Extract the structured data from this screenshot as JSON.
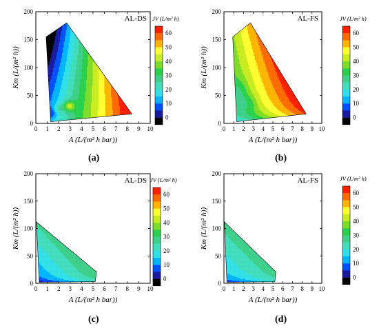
{
  "panel_captions": [
    "(a)",
    "(b)",
    "(c)",
    "(d)"
  ],
  "chart_data": [
    {
      "type": "contour",
      "panel": "a",
      "label": "AL-DS",
      "xlabel": "A (L/(m² h bar))",
      "ylabel": "Km (L/(m² h))",
      "xlim": [
        0,
        10
      ],
      "ylim": [
        0,
        200
      ],
      "xticks": [
        0,
        1,
        2,
        3,
        4,
        5,
        6,
        7,
        8,
        9,
        10
      ],
      "yticks": [
        0,
        50,
        100,
        150,
        200
      ],
      "colorbar_title": "JV (L/m² h)",
      "colorbar_ticks": [
        0,
        10,
        20,
        30,
        40,
        50,
        60
      ],
      "levels": [
        -5,
        0,
        5,
        10,
        15,
        20,
        25,
        30,
        35,
        40,
        45,
        50,
        55,
        60,
        65
      ],
      "colors": [
        "#000000",
        "#1a1aa0",
        "#0050ff",
        "#00b4ff",
        "#30e0e6",
        "#40ddbc",
        "#3cd08a",
        "#28d04c",
        "#7cdc28",
        "#c8ec20",
        "#ffff30",
        "#ffb400",
        "#ff6a00",
        "#ff1e00"
      ],
      "domain": [
        [
          0.9,
          155
        ],
        [
          2.7,
          180
        ],
        [
          8.4,
          17
        ],
        [
          1.3,
          3
        ]
      ],
      "model": "ds_full",
      "grid": "off"
    },
    {
      "type": "contour",
      "panel": "b",
      "label": "AL-FS",
      "xlabel": "A (L/(m² h bar))",
      "ylabel": "Km (L/(m² h))",
      "xlim": [
        0,
        10
      ],
      "ylim": [
        0,
        200
      ],
      "xticks": [
        0,
        1,
        2,
        3,
        4,
        5,
        6,
        7,
        8,
        9,
        10
      ],
      "yticks": [
        0,
        50,
        100,
        150,
        200
      ],
      "colorbar_title": "JV (L/m² h)",
      "colorbar_ticks": [
        0,
        10,
        20,
        30,
        40,
        50,
        60
      ],
      "levels": [
        -5,
        0,
        5,
        10,
        15,
        20,
        25,
        30,
        35,
        40,
        45,
        50,
        55,
        60,
        65
      ],
      "colors": [
        "#000000",
        "#1a1aa0",
        "#0050ff",
        "#00b4ff",
        "#30e0e6",
        "#40ddbc",
        "#3cd08a",
        "#28d04c",
        "#7cdc28",
        "#c8ec20",
        "#ffff30",
        "#ffb400",
        "#ff6a00",
        "#ff1e00"
      ],
      "domain": [
        [
          0.9,
          155
        ],
        [
          2.7,
          180
        ],
        [
          8.4,
          17
        ],
        [
          1.3,
          3
        ]
      ],
      "model": "fs_full",
      "grid": "off"
    },
    {
      "type": "contour",
      "panel": "c",
      "label": "AL-DS",
      "xlabel": "A (L/(m² h bar))",
      "ylabel": "Km (L/(m² h))",
      "xlim": [
        0,
        10
      ],
      "ylim": [
        0,
        200
      ],
      "xticks": [
        0,
        1,
        2,
        3,
        4,
        5,
        6,
        7,
        8,
        9,
        10
      ],
      "yticks": [
        0,
        50,
        100,
        150,
        200
      ],
      "colorbar_title": "JV (L/m² h)",
      "colorbar_ticks": [
        0,
        10,
        20,
        30,
        40,
        50,
        60
      ],
      "levels": [
        -5,
        0,
        5,
        10,
        15,
        20,
        25,
        30,
        35,
        40,
        45,
        50,
        55,
        60,
        65
      ],
      "colors": [
        "#000000",
        "#1a1aa0",
        "#0050ff",
        "#00b4ff",
        "#30e0e6",
        "#40ddbc",
        "#3cd08a",
        "#28d04c",
        "#7cdc28",
        "#c8ec20",
        "#ffff30",
        "#ffb400",
        "#ff6a00",
        "#ff1e00"
      ],
      "domain": [
        [
          0.05,
          112
        ],
        [
          5.3,
          21
        ],
        [
          5.2,
          3
        ],
        [
          0.3,
          2
        ]
      ],
      "model": "ds_small",
      "grid": "off"
    },
    {
      "type": "contour",
      "panel": "d",
      "label": "AL-FS",
      "xlabel": "A (L/(m² h bar))",
      "ylabel": "Km (L/(m² h))",
      "xlim": [
        0,
        10
      ],
      "ylim": [
        0,
        200
      ],
      "xticks": [
        0,
        1,
        2,
        3,
        4,
        5,
        6,
        7,
        8,
        9,
        10
      ],
      "yticks": [
        0,
        50,
        100,
        150,
        200
      ],
      "colorbar_title": "JV (L/m² h)",
      "colorbar_ticks": [
        0,
        10,
        20,
        30,
        40,
        50,
        60
      ],
      "levels": [
        -5,
        0,
        5,
        10,
        15,
        20,
        25,
        30,
        35,
        40,
        45,
        50,
        55,
        60,
        65
      ],
      "colors": [
        "#000000",
        "#1a1aa0",
        "#0050ff",
        "#00b4ff",
        "#30e0e6",
        "#40ddbc",
        "#3cd08a",
        "#28d04c",
        "#7cdc28",
        "#c8ec20",
        "#ffff30",
        "#ffb400",
        "#ff6a00",
        "#ff1e00"
      ],
      "domain": [
        [
          0.05,
          112
        ],
        [
          5.3,
          21
        ],
        [
          5.2,
          3
        ],
        [
          0.3,
          2
        ]
      ],
      "model": "fs_small",
      "grid": "off"
    }
  ]
}
